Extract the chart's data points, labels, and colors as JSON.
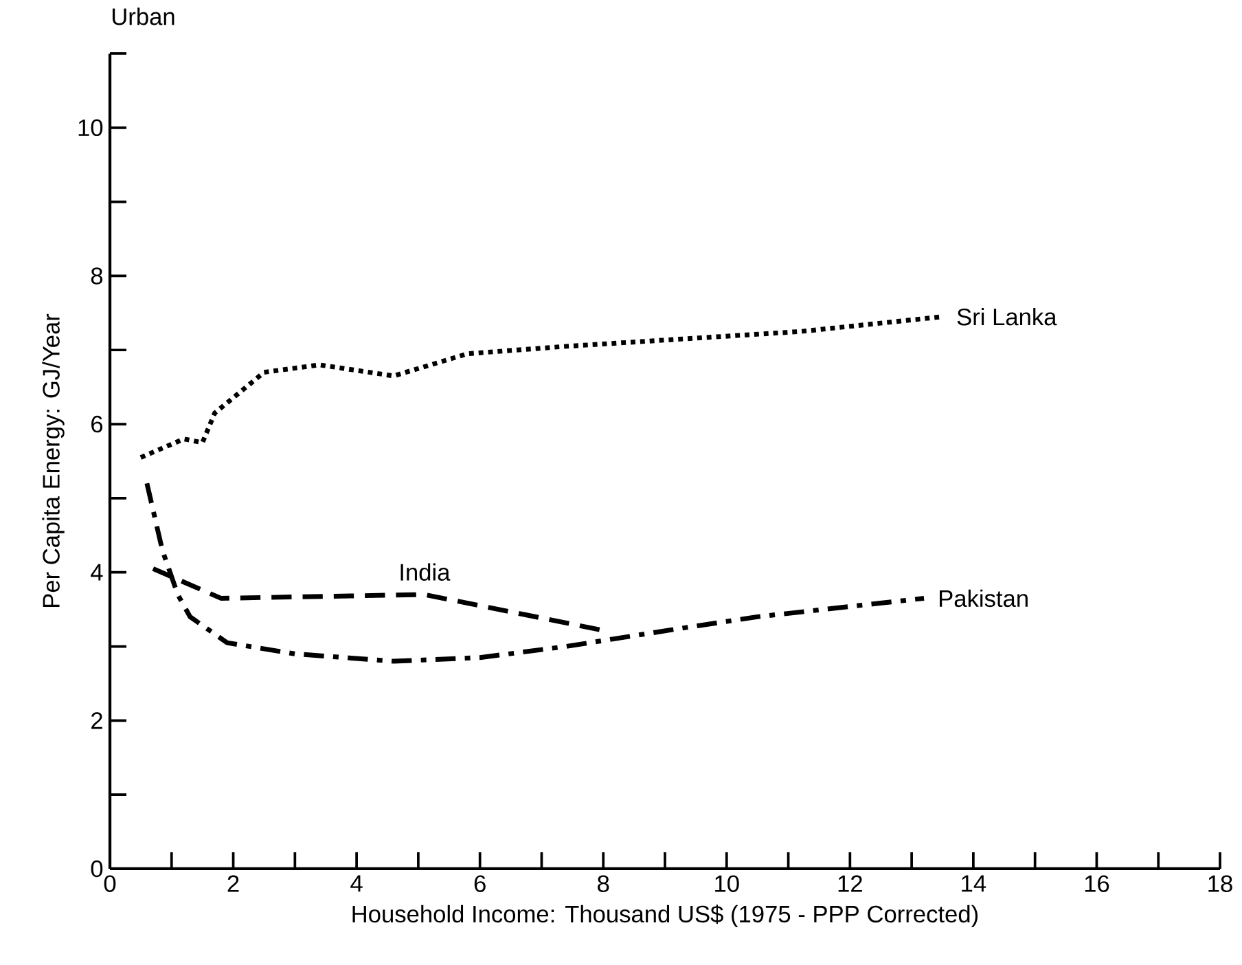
{
  "chart_data": {
    "type": "line",
    "title": "Urban",
    "xlabel": "Household Income: Thousand US$ (1975 - PPP Corrected)",
    "ylabel": "Per Capita Energy: GJ/Year",
    "xlim": [
      0,
      18
    ],
    "ylim": [
      0,
      11
    ],
    "xticks": [
      0,
      {
        "value": 1,
        "label": null
      },
      2,
      {
        "value": 3,
        "label": null
      },
      4,
      {
        "value": 5,
        "label": null
      },
      6,
      {
        "value": 7,
        "label": null
      },
      8,
      {
        "value": 9,
        "label": null
      },
      10,
      {
        "value": 11,
        "label": null
      },
      12,
      {
        "value": 13,
        "label": null
      },
      14,
      {
        "value": 15,
        "label": null
      },
      16,
      {
        "value": 17,
        "label": null
      },
      18
    ],
    "yticks": [
      0,
      {
        "value": 1,
        "label": null
      },
      2,
      {
        "value": 3,
        "label": null
      },
      4,
      {
        "value": 5,
        "label": null
      },
      6,
      {
        "value": 7,
        "label": null
      },
      8,
      {
        "value": 9,
        "label": null
      },
      10,
      {
        "value": 11,
        "label": null
      }
    ],
    "grid": false,
    "legend": false,
    "marker": "none",
    "series": [
      {
        "name": "Sri Lanka",
        "color": "#000000",
        "line_style": "dotted",
        "x": [
          0.5,
          1.2,
          1.5,
          1.7,
          2.5,
          3.4,
          4.6,
          5.8,
          7.4,
          9.3,
          11.2,
          13.5
        ],
        "values": [
          5.55,
          5.8,
          5.75,
          6.15,
          6.7,
          6.8,
          6.65,
          6.95,
          7.05,
          7.15,
          7.25,
          7.45
        ]
      },
      {
        "name": "India",
        "color": "#000000",
        "line_style": "dashed",
        "x": [
          0.7,
          1.8,
          5.1,
          8.1
        ],
        "values": [
          4.05,
          3.65,
          3.7,
          3.2
        ]
      },
      {
        "name": "Pakistan",
        "color": "#000000",
        "line_style": "dashdot",
        "x": [
          0.6,
          0.85,
          1.1,
          1.3,
          1.9,
          3.0,
          4.6,
          6.0,
          7.4,
          9.3,
          10.5,
          13.2
        ],
        "values": [
          5.2,
          4.3,
          3.7,
          3.4,
          3.05,
          2.9,
          2.8,
          2.85,
          3.0,
          3.25,
          3.4,
          3.65
        ]
      }
    ]
  }
}
